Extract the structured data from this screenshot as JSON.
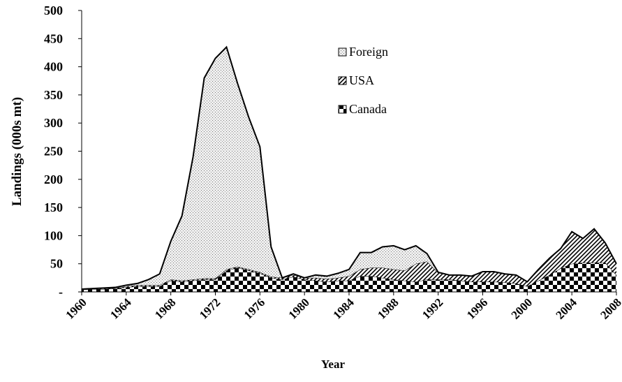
{
  "chart_data": {
    "type": "stacked_area",
    "x_label": "Year",
    "y_label": "Landings (000s mt)",
    "x": [
      1960,
      1961,
      1962,
      1963,
      1964,
      1965,
      1966,
      1967,
      1968,
      1969,
      1970,
      1971,
      1972,
      1973,
      1974,
      1975,
      1976,
      1977,
      1978,
      1979,
      1980,
      1981,
      1982,
      1983,
      1984,
      1985,
      1986,
      1987,
      1988,
      1989,
      1990,
      1991,
      1992,
      1993,
      1994,
      1995,
      1996,
      1997,
      1998,
      1999,
      2000,
      2001,
      2002,
      2003,
      2004,
      2005,
      2006,
      2007,
      2008
    ],
    "series": [
      {
        "name": "Canada",
        "color": "#000000",
        "values": [
          4,
          5,
          5,
          6,
          8,
          10,
          10,
          10,
          20,
          18,
          20,
          22,
          22,
          38,
          43,
          38,
          33,
          25,
          22,
          27,
          22,
          20,
          18,
          20,
          20,
          28,
          28,
          25,
          22,
          20,
          18,
          22,
          22,
          22,
          20,
          18,
          18,
          18,
          17,
          15,
          10,
          20,
          30,
          42,
          50,
          52,
          52,
          52,
          30
        ]
      },
      {
        "name": "USA",
        "color": "#000000",
        "values": [
          1,
          1,
          1,
          1,
          2,
          2,
          2,
          2,
          2,
          2,
          2,
          2,
          2,
          2,
          2,
          2,
          2,
          2,
          3,
          3,
          3,
          5,
          5,
          5,
          8,
          12,
          15,
          18,
          18,
          18,
          32,
          32,
          12,
          8,
          10,
          10,
          18,
          18,
          15,
          15,
          8,
          20,
          30,
          35,
          57,
          43,
          60,
          35,
          20
        ]
      },
      {
        "name": "Foreign",
        "color": "#000000",
        "values": [
          0,
          0,
          1,
          1,
          2,
          3,
          10,
          20,
          68,
          115,
          218,
          356,
          391,
          395,
          325,
          270,
          223,
          53,
          0,
          2,
          0,
          5,
          5,
          8,
          12,
          30,
          27,
          37,
          42,
          37,
          32,
          14,
          1,
          0,
          0,
          0,
          0,
          0,
          0,
          0,
          0,
          0,
          0,
          0,
          0,
          0,
          0,
          0,
          0
        ]
      }
    ],
    "xlim": [
      1960,
      2008
    ],
    "xticks": [
      1960,
      1964,
      1968,
      1972,
      1976,
      1980,
      1984,
      1988,
      1992,
      1996,
      2000,
      2004,
      2008
    ],
    "ylim": [
      0,
      500
    ],
    "yticks": [
      {
        "value": 0,
        "label": "-"
      },
      50,
      100,
      150,
      200,
      250,
      300,
      350,
      400,
      450,
      500
    ],
    "legend": "top-center"
  }
}
